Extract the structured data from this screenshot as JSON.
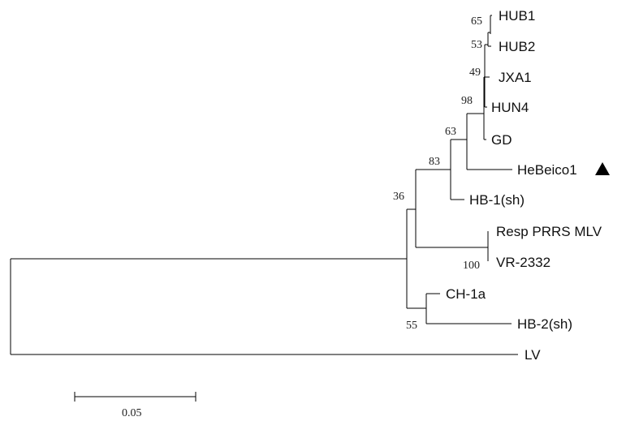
{
  "taxa": {
    "hub1": "HUB1",
    "hub2": "HUB2",
    "jxa1": "JXA1",
    "hun4": "HUN4",
    "gd": "GD",
    "hebeico1": "HeBeico1",
    "hb1sh": "HB-1(sh)",
    "resp": "Resp PRRS MLV",
    "vr2332": "VR-2332",
    "ch1a": "CH-1a",
    "hb2sh": "HB-2(sh)",
    "lv": "LV"
  },
  "bootstrap": {
    "b65": "65",
    "b53": "53",
    "b49": "49",
    "b98": "98",
    "b63": "63",
    "b83": "83",
    "b36": "36",
    "b100": "100",
    "b55": "55"
  },
  "scale_bar": {
    "label": "0.05"
  },
  "marker": {
    "icon": "filled-triangle-icon",
    "color": "#000000"
  }
}
